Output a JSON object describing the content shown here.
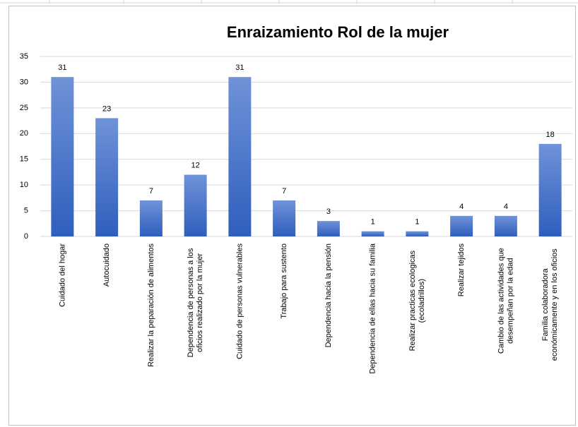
{
  "chart_data": {
    "type": "bar",
    "title": "Enraizamiento Rol de la mujer",
    "categories": [
      "Cuidado del hogar",
      "Autocuidado",
      "Realizar la peparación de alimentos",
      "Dependencia de personas a los oficios realizado por la mujer",
      "Cuidado de personas vulnerables",
      "Trabajo para sustento",
      "Dependencia hacia la pensión",
      "Dependencia de ellas hacia su familia",
      "Realizar practicas ecologicas (ecoladrillos)",
      "Realizar tejidos",
      "Cambio de las actividades que desempeñan por la edad",
      "Familia colaboradora económicamente y en los oficios"
    ],
    "values": [
      31,
      23,
      7,
      12,
      31,
      7,
      3,
      1,
      1,
      4,
      4,
      18
    ],
    "color": "#4472c4",
    "ylim": [
      0,
      35
    ],
    "yticks": [
      0,
      5,
      10,
      15,
      20,
      25,
      30,
      35
    ],
    "grid": true
  }
}
